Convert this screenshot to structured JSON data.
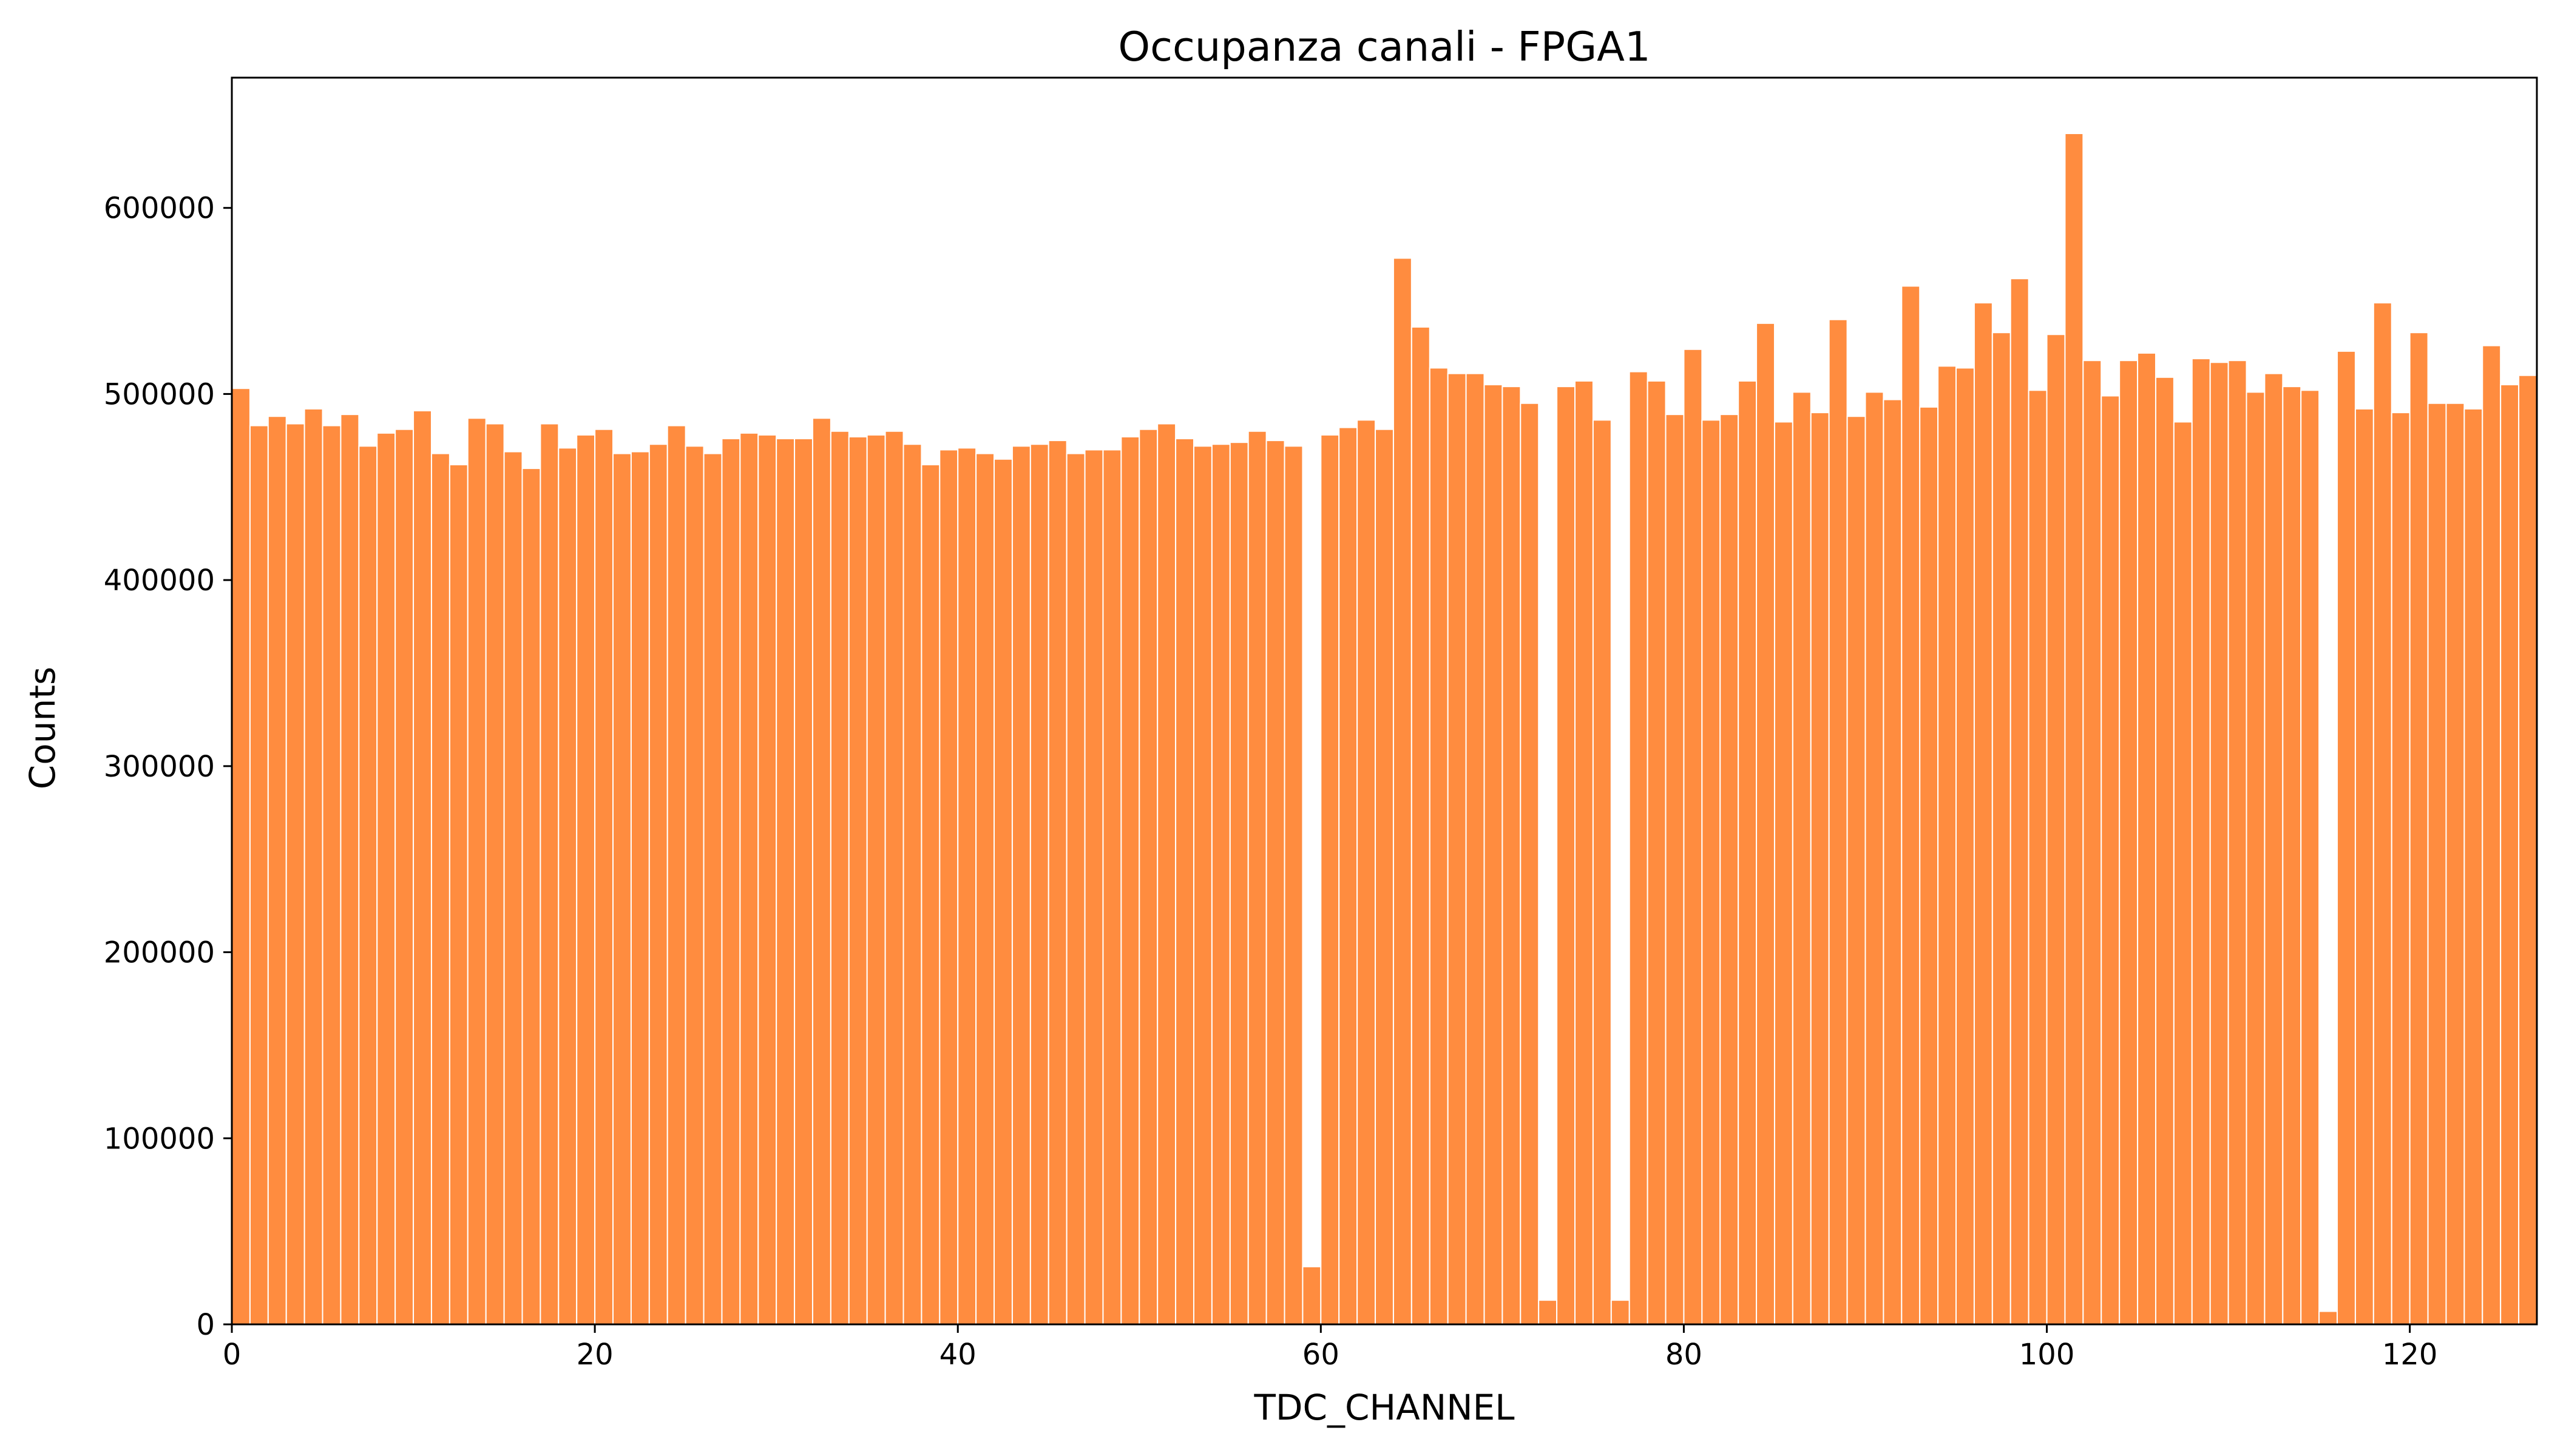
{
  "chart_data": {
    "type": "bar",
    "title": "Occupanza canali - FPGA1",
    "xlabel": "TDC_CHANNEL",
    "ylabel": "Counts",
    "xlim": [
      0,
      127
    ],
    "ylim": [
      0,
      670000
    ],
    "xticks": [
      0,
      20,
      40,
      60,
      80,
      100,
      120
    ],
    "yticks": [
      0,
      100000,
      200000,
      300000,
      400000,
      500000,
      600000
    ],
    "bar_color": "#ff8c3f",
    "grid": false,
    "x": [
      0,
      1,
      2,
      3,
      4,
      5,
      6,
      7,
      8,
      9,
      10,
      11,
      12,
      13,
      14,
      15,
      16,
      17,
      18,
      19,
      20,
      21,
      22,
      23,
      24,
      25,
      26,
      27,
      28,
      29,
      30,
      31,
      32,
      33,
      34,
      35,
      36,
      37,
      38,
      39,
      40,
      41,
      42,
      43,
      44,
      45,
      46,
      47,
      48,
      49,
      50,
      51,
      52,
      53,
      54,
      55,
      56,
      57,
      58,
      59,
      60,
      61,
      62,
      63,
      64,
      65,
      66,
      67,
      68,
      69,
      70,
      71,
      72,
      73,
      74,
      75,
      76,
      77,
      78,
      79,
      80,
      81,
      82,
      83,
      84,
      85,
      86,
      87,
      88,
      89,
      90,
      91,
      92,
      93,
      94,
      95,
      96,
      97,
      98,
      99,
      100,
      101,
      102,
      103,
      104,
      105,
      106,
      107,
      108,
      109,
      110,
      111,
      112,
      113,
      114,
      115,
      116,
      117,
      118,
      119,
      120,
      121,
      122,
      123,
      124,
      125,
      126
    ],
    "values": [
      503000,
      483000,
      488000,
      484000,
      492000,
      483000,
      489000,
      472000,
      479000,
      481000,
      491000,
      468000,
      462000,
      487000,
      484000,
      469000,
      460000,
      484000,
      471000,
      478000,
      481000,
      468000,
      469000,
      473000,
      483000,
      472000,
      468000,
      476000,
      479000,
      478000,
      476000,
      476000,
      487000,
      480000,
      477000,
      478000,
      480000,
      473000,
      462000,
      470000,
      471000,
      468000,
      465000,
      472000,
      473000,
      475000,
      468000,
      470000,
      470000,
      477000,
      481000,
      484000,
      476000,
      472000,
      473000,
      474000,
      480000,
      475000,
      472000,
      31000,
      478000,
      482000,
      486000,
      481000,
      573000,
      536000,
      514000,
      511000,
      511000,
      505000,
      504000,
      495000,
      13000,
      504000,
      507000,
      486000,
      13000,
      512000,
      507000,
      489000,
      524000,
      486000,
      489000,
      507000,
      538000,
      485000,
      501000,
      490000,
      540000,
      488000,
      501000,
      497000,
      558000,
      493000,
      515000,
      514000,
      549000,
      533000,
      562000,
      502000,
      532000,
      640000,
      518000,
      499000,
      518000,
      522000,
      509000,
      485000,
      519000,
      517000,
      518000,
      501000,
      511000,
      504000,
      502000,
      7000,
      523000,
      492000,
      549000,
      490000,
      533000,
      495000,
      495000,
      492000,
      526000,
      505000,
      510000
    ]
  }
}
